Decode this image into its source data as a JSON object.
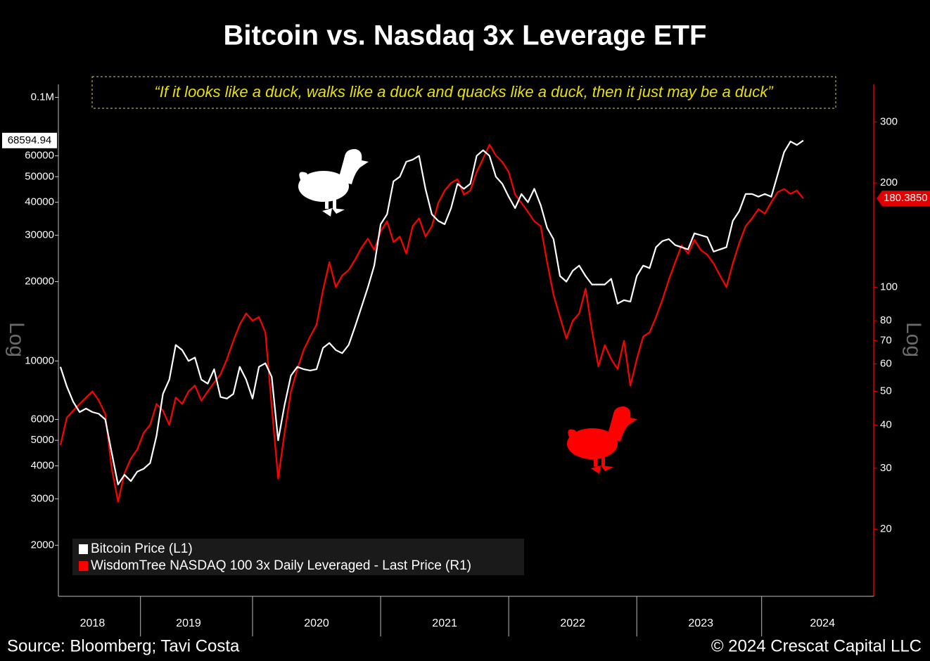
{
  "chart_data": {
    "type": "line",
    "title": "Bitcoin vs. Nasdaq 3x Leverage ETF",
    "annotation": "“If it looks like a duck, walks like a duck and quacks like a duck, then it just may be a duck”",
    "y_label": "Log",
    "y2_label": "Log",
    "source": "Source: Bloomberg; Tavi Costa",
    "copyright": "© 2024 Crescat Capital LLC",
    "log_scale": true,
    "legend": "lower left",
    "xlim": [
      2018.484,
      2024.85
    ],
    "xticks": [
      {
        "value": 2018.75,
        "label": "2018"
      },
      {
        "value": 2019.5,
        "label": "2019"
      },
      {
        "value": 2020.5,
        "label": "2020"
      },
      {
        "value": 2021.5,
        "label": "2021"
      },
      {
        "value": 2022.5,
        "label": "2022"
      },
      {
        "value": 2023.5,
        "label": "2023"
      },
      {
        "value": 2024.45,
        "label": "2024"
      }
    ],
    "ylim": [
      1280,
      112000
    ],
    "yticks": [
      2000,
      3000,
      4000,
      5000,
      6000,
      10000,
      20000,
      30000,
      40000,
      50000,
      60000,
      {
        "value": 100000,
        "label": "0.1M"
      }
    ],
    "y2lim": [
      12.8,
      385
    ],
    "y2ticks": [
      20,
      30,
      40,
      50,
      60,
      70,
      80,
      100,
      200,
      300
    ],
    "x": [
      2018.5,
      2018.55,
      2018.6,
      2018.65,
      2018.7,
      2018.75,
      2018.8,
      2018.85,
      2018.9,
      2018.95,
      2019,
      2019.05,
      2019.1,
      2019.15,
      2019.2,
      2019.25,
      2019.3,
      2019.35,
      2019.4,
      2019.45,
      2019.5,
      2019.55,
      2019.6,
      2019.65,
      2019.7,
      2019.75,
      2019.8,
      2019.85,
      2019.9,
      2019.95,
      2020,
      2020.05,
      2020.1,
      2020.15,
      2020.2,
      2020.25,
      2020.3,
      2020.35,
      2020.4,
      2020.45,
      2020.5,
      2020.55,
      2020.6,
      2020.65,
      2020.7,
      2020.75,
      2020.8,
      2020.85,
      2020.9,
      2020.95,
      2021,
      2021.05,
      2021.1,
      2021.15,
      2021.2,
      2021.25,
      2021.3,
      2021.35,
      2021.4,
      2021.45,
      2021.5,
      2021.55,
      2021.6,
      2021.65,
      2021.7,
      2021.75,
      2021.8,
      2021.85,
      2021.9,
      2021.95,
      2022,
      2022.05,
      2022.1,
      2022.15,
      2022.2,
      2022.25,
      2022.3,
      2022.35,
      2022.4,
      2022.45,
      2022.5,
      2022.55,
      2022.6,
      2022.65,
      2022.7,
      2022.75,
      2022.8,
      2022.85,
      2022.9,
      2022.95,
      2023,
      2023.05,
      2023.1,
      2023.15,
      2023.2,
      2023.25,
      2023.3,
      2023.35,
      2023.4,
      2023.45,
      2023.5,
      2023.55,
      2023.6,
      2023.65,
      2023.7,
      2023.75,
      2023.8,
      2023.85,
      2023.9,
      2023.95,
      2024,
      2024.05,
      2024.1,
      2024.15,
      2024.2,
      2024.25,
      2024.3
    ],
    "series": [
      {
        "name": "Bitcoin Price (L1)",
        "color": "#ffffff",
        "axis": "y",
        "values": [
          9500,
          8000,
          7000,
          6400,
          6600,
          6400,
          6300,
          6000,
          4500,
          3400,
          3700,
          3500,
          3800,
          3900,
          4100,
          5200,
          7500,
          8500,
          11500,
          11000,
          10000,
          10300,
          8500,
          8200,
          9300,
          7300,
          7200,
          7500,
          9500,
          8500,
          7200,
          9500,
          9800,
          8700,
          5000,
          6800,
          8800,
          9500,
          9300,
          9200,
          9300,
          11200,
          11700,
          11000,
          10700,
          11500,
          13500,
          16000,
          19000,
          23000,
          33000,
          36000,
          48000,
          50000,
          57000,
          58000,
          60000,
          45000,
          36000,
          34000,
          33000,
          38000,
          47000,
          45000,
          47000,
          60000,
          63000,
          60000,
          50000,
          47000,
          42000,
          38000,
          43000,
          40000,
          45000,
          39000,
          32000,
          29000,
          21000,
          20000,
          22000,
          23000,
          21000,
          19500,
          19500,
          19500,
          20500,
          16500,
          17000,
          16800,
          21000,
          23000,
          22500,
          27000,
          28500,
          29000,
          27500,
          27000,
          26500,
          30500,
          30000,
          29500,
          26000,
          26500,
          27000,
          34000,
          37000,
          43000,
          43000,
          42000,
          43000,
          42000,
          51000,
          62000,
          68000,
          66000,
          68594.94
        ]
      },
      {
        "name": "WisdomTree NASDAQ 100 3x Daily Leveraged - Last Price (R1)",
        "color": "#ff0000",
        "axis": "y2",
        "last_value_label": "180.3850",
        "values": [
          35,
          42,
          44,
          46,
          48,
          50,
          47,
          43,
          30,
          24,
          29,
          32,
          34,
          38,
          40,
          46,
          44,
          40,
          48,
          46,
          50,
          52,
          47,
          50,
          53,
          56,
          62,
          70,
          78,
          84,
          80,
          82,
          74,
          45,
          28,
          38,
          50,
          58,
          66,
          72,
          78,
          98,
          118,
          100,
          108,
          112,
          120,
          130,
          138,
          128,
          145,
          155,
          135,
          140,
          125,
          150,
          158,
          140,
          150,
          175,
          190,
          200,
          205,
          185,
          190,
          215,
          235,
          258,
          240,
          230,
          215,
          185,
          175,
          165,
          155,
          150,
          118,
          95,
          82,
          71,
          80,
          84,
          99,
          75,
          59,
          68,
          62,
          58,
          70,
          52,
          62,
          72,
          74,
          82,
          92,
          105,
          118,
          132,
          125,
          137,
          128,
          124,
          117,
          108,
          100,
          117,
          134,
          150,
          158,
          168,
          163,
          176,
          188,
          192,
          186,
          190,
          180.385
        ]
      }
    ]
  }
}
